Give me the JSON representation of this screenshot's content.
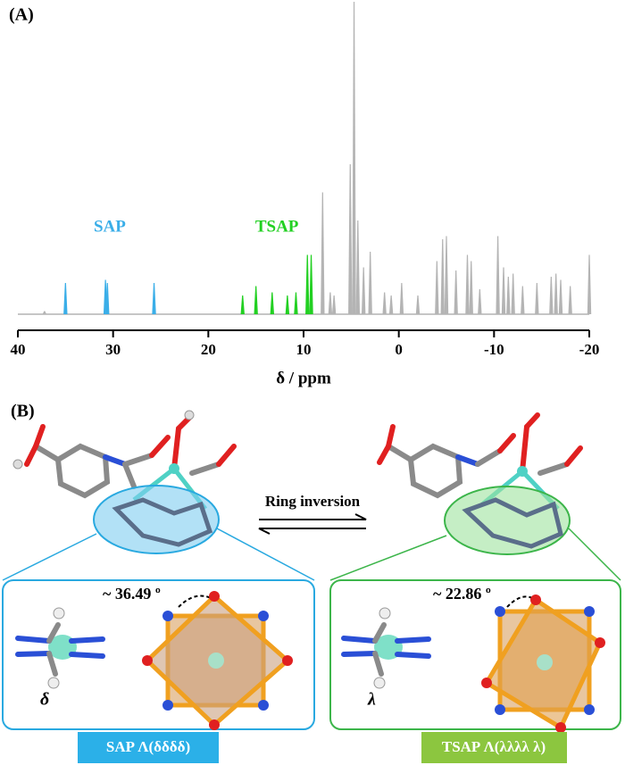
{
  "panel_a": {
    "label": "(A)",
    "spectrum": {
      "type": "nmr",
      "xlabel": "δ / ppm",
      "xlim": [
        40,
        -20
      ],
      "xticks": [
        40,
        30,
        20,
        10,
        0,
        -10,
        -20
      ],
      "groups": [
        {
          "label": "SAP",
          "color": "#3aaee8",
          "peaks": {
            "x": [
              35,
              30.8,
              30.6,
              25.7
            ],
            "height": [
              10,
              11,
              10,
              10
            ]
          }
        },
        {
          "label": "TSAP",
          "color": "#22d022",
          "peaks": {
            "x": [
              16.4,
              15,
              13.3,
              11.7,
              10.8,
              9.6,
              9.2
            ],
            "height": [
              6,
              9,
              7,
              6,
              7,
              19,
              19
            ]
          }
        },
        {
          "color": "#b4b4b4",
          "peaks": {
            "x": [
              37.2,
              8,
              7.2,
              6.8,
              5.1,
              4.7,
              4.3,
              3.7,
              3,
              1.5,
              0.8,
              -0.3,
              -2,
              -4,
              -4.6,
              -5,
              -6,
              -7.2,
              -7.6,
              -8.5,
              -10.4,
              -11,
              -11.5,
              -12,
              -13,
              -14.5,
              -16,
              -16.5,
              -17,
              -18,
              -20
            ],
            "height": [
              1,
              39,
              7,
              6,
              48,
              100,
              30,
              15,
              20,
              7,
              6,
              10,
              6,
              17,
              24,
              25,
              14,
              19,
              17,
              8,
              25,
              15,
              12,
              13,
              9,
              10,
              12,
              13,
              11,
              9,
              19
            ]
          }
        }
      ]
    }
  },
  "panel_b": {
    "label": "(B)",
    "arrow_label": "Ring inversion",
    "left": {
      "angle": "~ 36.49 º",
      "ring": "δ",
      "tag": "SAP Λ(δδδδ)"
    },
    "right": {
      "angle": "~ 22.86 º",
      "ring": "λ",
      "tag": "TSAP Λ(λλλλ λ)"
    }
  }
}
